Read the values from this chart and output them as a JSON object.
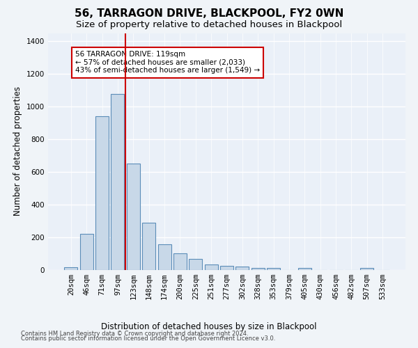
{
  "title": "56, TARRAGON DRIVE, BLACKPOOL, FY2 0WN",
  "subtitle": "Size of property relative to detached houses in Blackpool",
  "xlabel": "Distribution of detached houses by size in Blackpool",
  "ylabel": "Number of detached properties",
  "categories": [
    "20sqm",
    "46sqm",
    "71sqm",
    "97sqm",
    "123sqm",
    "148sqm",
    "174sqm",
    "200sqm",
    "225sqm",
    "251sqm",
    "277sqm",
    "302sqm",
    "328sqm",
    "353sqm",
    "379sqm",
    "405sqm",
    "430sqm",
    "456sqm",
    "482sqm",
    "507sqm",
    "533sqm"
  ],
  "values": [
    15,
    220,
    940,
    1075,
    650,
    290,
    155,
    100,
    65,
    30,
    22,
    20,
    12,
    12,
    0,
    12,
    0,
    0,
    0,
    10,
    0
  ],
  "bar_color": "#c8d8e8",
  "bar_edge_color": "#5b8db8",
  "vline_x_index": 4,
  "vline_color": "#cc0000",
  "annotation_text": "56 TARRAGON DRIVE: 119sqm\n← 57% of detached houses are smaller (2,033)\n43% of semi-detached houses are larger (1,549) →",
  "annotation_box_color": "#ffffff",
  "annotation_box_edge": "#cc0000",
  "ylim": [
    0,
    1450
  ],
  "yticks": [
    0,
    200,
    400,
    600,
    800,
    1000,
    1200,
    1400
  ],
  "footer_line1": "Contains HM Land Registry data © Crown copyright and database right 2024.",
  "footer_line2": "Contains public sector information licensed under the Open Government Licence v3.0.",
  "bg_color": "#f0f4f8",
  "plot_bg_color": "#eaf0f8",
  "grid_color": "#ffffff",
  "title_fontsize": 11,
  "subtitle_fontsize": 9.5,
  "axis_label_fontsize": 8.5,
  "tick_fontsize": 7.5,
  "annotation_fontsize": 7.5,
  "footer_fontsize": 6.0
}
